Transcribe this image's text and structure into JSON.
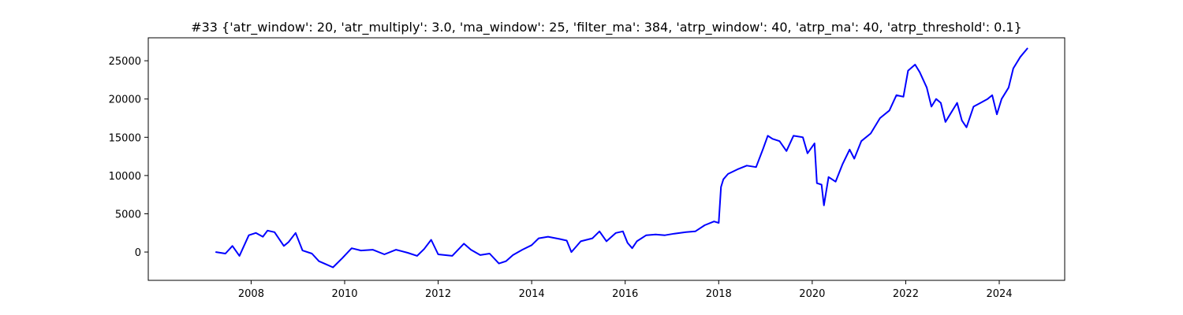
{
  "chart_data": {
    "type": "line",
    "title": "#33 {'atr_window': 20, 'atr_multiply': 3.0, 'ma_window': 25, 'filter_ma': 384, 'atrp_window': 40, 'atrp_ma': 40, 'atrp_threshold': 0.1}",
    "xlabel": "",
    "ylabel": "",
    "xlim": [
      2005.8,
      2025.4
    ],
    "ylim": [
      -3700,
      28000
    ],
    "grid": false,
    "legend": "none",
    "x_ticks": [
      2008,
      2010,
      2012,
      2014,
      2016,
      2018,
      2020,
      2022,
      2024
    ],
    "x_tick_labels": [
      "2008",
      "2010",
      "2012",
      "2014",
      "2016",
      "2018",
      "2020",
      "2022",
      "2024"
    ],
    "y_ticks": [
      0,
      5000,
      10000,
      15000,
      20000,
      25000
    ],
    "y_tick_labels": [
      "0",
      "5000",
      "10000",
      "15000",
      "20000",
      "25000"
    ],
    "line_color": "#0000ff",
    "series": [
      {
        "x": [
          2007.25,
          2007.45,
          2007.6,
          2007.75,
          2007.95,
          2008.1,
          2008.25,
          2008.35,
          2008.5,
          2008.7,
          2008.8,
          2008.95,
          2009.1,
          2009.3,
          2009.45,
          2009.6,
          2009.75,
          2009.95,
          2010.15,
          2010.35,
          2010.6,
          2010.85,
          2011.1,
          2011.35,
          2011.55,
          2011.7,
          2011.85,
          2012.0,
          2012.3,
          2012.55,
          2012.7,
          2012.9,
          2013.1,
          2013.3,
          2013.45,
          2013.6,
          2013.8,
          2014.0,
          2014.15,
          2014.35,
          2014.6,
          2014.75,
          2014.85,
          2015.05,
          2015.3,
          2015.45,
          2015.6,
          2015.8,
          2015.95,
          2016.05,
          2016.15,
          2016.25,
          2016.45,
          2016.65,
          2016.85,
          2017.05,
          2017.3,
          2017.5,
          2017.7,
          2017.9,
          2018.0,
          2018.05,
          2018.1,
          2018.2,
          2018.4,
          2018.6,
          2018.8,
          2018.95,
          2019.05,
          2019.15,
          2019.3,
          2019.45,
          2019.6,
          2019.8,
          2019.9,
          2020.05,
          2020.1,
          2020.2,
          2020.25,
          2020.35,
          2020.5,
          2020.65,
          2020.8,
          2020.9,
          2021.05,
          2021.25,
          2021.45,
          2021.65,
          2021.8,
          2021.95,
          2022.05,
          2022.2,
          2022.3,
          2022.45,
          2022.55,
          2022.65,
          2022.75,
          2022.85,
          2022.95,
          2023.1,
          2023.2,
          2023.3,
          2023.45,
          2023.6,
          2023.75,
          2023.85,
          2023.95,
          2024.05,
          2024.2,
          2024.3,
          2024.45,
          2024.6
        ],
        "values": [
          0,
          -200,
          800,
          -500,
          2200,
          2500,
          2000,
          2800,
          2600,
          800,
          1300,
          2500,
          200,
          -200,
          -1200,
          -1600,
          -2000,
          -800,
          500,
          200,
          300,
          -300,
          300,
          -100,
          -500,
          400,
          1600,
          -300,
          -500,
          1100,
          300,
          -400,
          -200,
          -1500,
          -1200,
          -400,
          300,
          900,
          1800,
          2000,
          1700,
          1500,
          0,
          1400,
          1800,
          2700,
          1400,
          2500,
          2700,
          1200,
          500,
          1400,
          2200,
          2300,
          2200,
          2400,
          2600,
          2700,
          3500,
          4000,
          3800,
          8500,
          9500,
          10200,
          10800,
          11300,
          11100,
          13500,
          15200,
          14800,
          14500,
          13200,
          15200,
          15000,
          12900,
          14200,
          9000,
          8800,
          6100,
          9800,
          9200,
          11500,
          13400,
          12200,
          14500,
          15500,
          17500,
          18500,
          20500,
          20300,
          23700,
          24500,
          23500,
          21500,
          19000,
          20000,
          19500,
          17000,
          18000,
          19500,
          17200,
          16300,
          19000,
          19500,
          20000,
          20500,
          18000,
          20000,
          21500,
          24000,
          25500,
          26600
        ]
      }
    ]
  }
}
